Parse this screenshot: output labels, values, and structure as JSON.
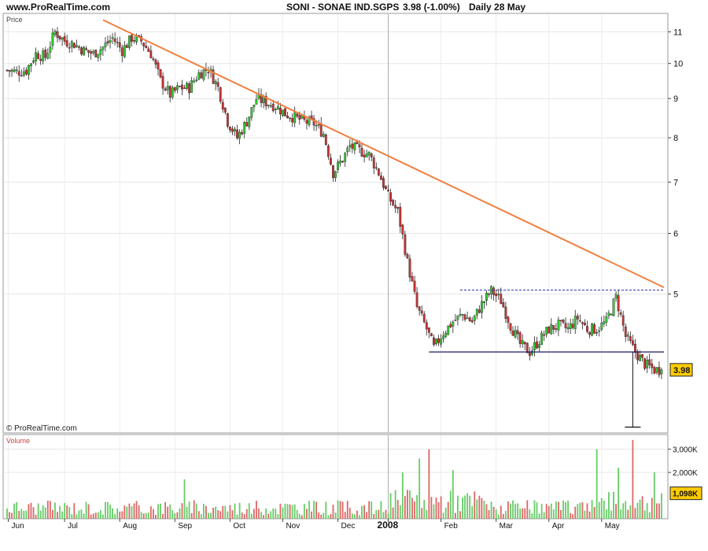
{
  "header": {
    "site": "www.ProRealTime.com",
    "instrument": "SONI - SONAE IND.SGPS",
    "quote": "3.98 (-1.00%)",
    "period": "Daily  28 May"
  },
  "price_panel": {
    "label": "Price",
    "copyright": "© ProRealTime.com"
  },
  "volume_panel": {
    "label": "Volume"
  },
  "colors": {
    "up": "#33cc33",
    "down": "#cc3333",
    "trendline": "#f08040",
    "support": "#1a1a66",
    "badge": "#ffcc00",
    "vol_up": "#66cc66",
    "vol_down": "#dd6666"
  },
  "chart_data": [
    {
      "type": "candlestick",
      "scale": "log",
      "ylim": [
        3.3,
        11.6
      ],
      "yticks": [
        5,
        6,
        7,
        8,
        9,
        10,
        11
      ],
      "last_value": 3.98,
      "last_label": "3.98",
      "xticks": [
        "Jun",
        "Jul",
        "Aug",
        "Sep",
        "Oct",
        "Nov",
        "Dec",
        "2008",
        "Feb",
        "Mar",
        "Apr",
        "May"
      ],
      "xtick_pos": [
        0.5,
        24,
        47,
        70,
        93,
        115,
        138,
        159,
        181,
        204,
        226,
        248
      ],
      "x_count": 274,
      "series": [
        {
          "x": 0,
          "close": 9.8
        },
        {
          "x": 4,
          "close": 9.75
        },
        {
          "x": 8,
          "close": 9.8
        },
        {
          "x": 12,
          "close": 10.3
        },
        {
          "x": 16,
          "close": 10.2
        },
        {
          "x": 20,
          "close": 11.0
        },
        {
          "x": 24,
          "close": 10.7
        },
        {
          "x": 28,
          "close": 10.6
        },
        {
          "x": 32,
          "close": 10.4
        },
        {
          "x": 36,
          "close": 10.3
        },
        {
          "x": 40,
          "close": 10.5
        },
        {
          "x": 44,
          "close": 10.8
        },
        {
          "x": 48,
          "close": 10.4
        },
        {
          "x": 52,
          "close": 10.8
        },
        {
          "x": 56,
          "close": 10.7
        },
        {
          "x": 60,
          "close": 10.3
        },
        {
          "x": 64,
          "close": 9.5
        },
        {
          "x": 68,
          "close": 9.1
        },
        {
          "x": 72,
          "close": 9.3
        },
        {
          "x": 76,
          "close": 9.3
        },
        {
          "x": 80,
          "close": 9.7
        },
        {
          "x": 84,
          "close": 9.85
        },
        {
          "x": 88,
          "close": 9.3
        },
        {
          "x": 92,
          "close": 8.4
        },
        {
          "x": 96,
          "close": 8.0
        },
        {
          "x": 100,
          "close": 8.4
        },
        {
          "x": 104,
          "close": 9.0
        },
        {
          "x": 108,
          "close": 8.9
        },
        {
          "x": 112,
          "close": 8.8
        },
        {
          "x": 116,
          "close": 8.6
        },
        {
          "x": 120,
          "close": 8.5
        },
        {
          "x": 124,
          "close": 8.4
        },
        {
          "x": 128,
          "close": 8.35
        },
        {
          "x": 132,
          "close": 8.1
        },
        {
          "x": 136,
          "close": 7.2
        },
        {
          "x": 140,
          "close": 7.5
        },
        {
          "x": 143,
          "close": 7.8
        },
        {
          "x": 147,
          "close": 7.7
        },
        {
          "x": 151,
          "close": 7.6
        },
        {
          "x": 155,
          "close": 7.2
        },
        {
          "x": 159,
          "close": 6.7
        },
        {
          "x": 163,
          "close": 6.4
        },
        {
          "x": 167,
          "close": 5.5
        },
        {
          "x": 171,
          "close": 4.8
        },
        {
          "x": 175,
          "close": 4.5
        },
        {
          "x": 178,
          "close": 4.25
        },
        {
          "x": 182,
          "close": 4.45
        },
        {
          "x": 186,
          "close": 4.6
        },
        {
          "x": 190,
          "close": 4.7
        },
        {
          "x": 194,
          "close": 4.6
        },
        {
          "x": 198,
          "close": 4.85
        },
        {
          "x": 202,
          "close": 5.05
        },
        {
          "x": 206,
          "close": 4.9
        },
        {
          "x": 210,
          "close": 4.55
        },
        {
          "x": 214,
          "close": 4.3
        },
        {
          "x": 218,
          "close": 4.2
        },
        {
          "x": 222,
          "close": 4.35
        },
        {
          "x": 226,
          "close": 4.5
        },
        {
          "x": 230,
          "close": 4.55
        },
        {
          "x": 234,
          "close": 4.5
        },
        {
          "x": 238,
          "close": 4.65
        },
        {
          "x": 242,
          "close": 4.5
        },
        {
          "x": 246,
          "close": 4.5
        },
        {
          "x": 250,
          "close": 4.6
        },
        {
          "x": 254,
          "close": 4.95
        },
        {
          "x": 258,
          "close": 4.4
        },
        {
          "x": 262,
          "close": 4.2
        },
        {
          "x": 266,
          "close": 4.05
        },
        {
          "x": 270,
          "close": 3.98
        }
      ],
      "annotations": [
        {
          "kind": "trendline",
          "from": {
            "x": 40,
            "y": 11.4
          },
          "to": {
            "x": 274,
            "y": 5.1
          }
        },
        {
          "kind": "resistance_dashed",
          "from_x": 189,
          "to_x": 274,
          "y": 5.06
        },
        {
          "kind": "support",
          "from_x": 176,
          "to_x": 274,
          "y": 4.2
        },
        {
          "kind": "target_drop",
          "x": 261,
          "from_y": 4.2,
          "to_y": 3.35
        }
      ]
    },
    {
      "type": "bar",
      "title": "Volume",
      "unit": "K",
      "ylim": [
        0,
        3600
      ],
      "yticks": [
        2000,
        3000
      ],
      "ytick_labels": [
        "2,000K",
        "3,000K"
      ],
      "last_value": 1098,
      "last_label": "1,098K",
      "peaks": [
        {
          "x": 74,
          "value": 1700
        },
        {
          "x": 165,
          "value": 2000
        },
        {
          "x": 172,
          "value": 2600
        },
        {
          "x": 176,
          "value": 3000
        },
        {
          "x": 186,
          "value": 2100
        },
        {
          "x": 246,
          "value": 3000
        },
        {
          "x": 255,
          "value": 2200
        },
        {
          "x": 261,
          "value": 3400
        },
        {
          "x": 270,
          "value": 2000
        }
      ]
    }
  ]
}
